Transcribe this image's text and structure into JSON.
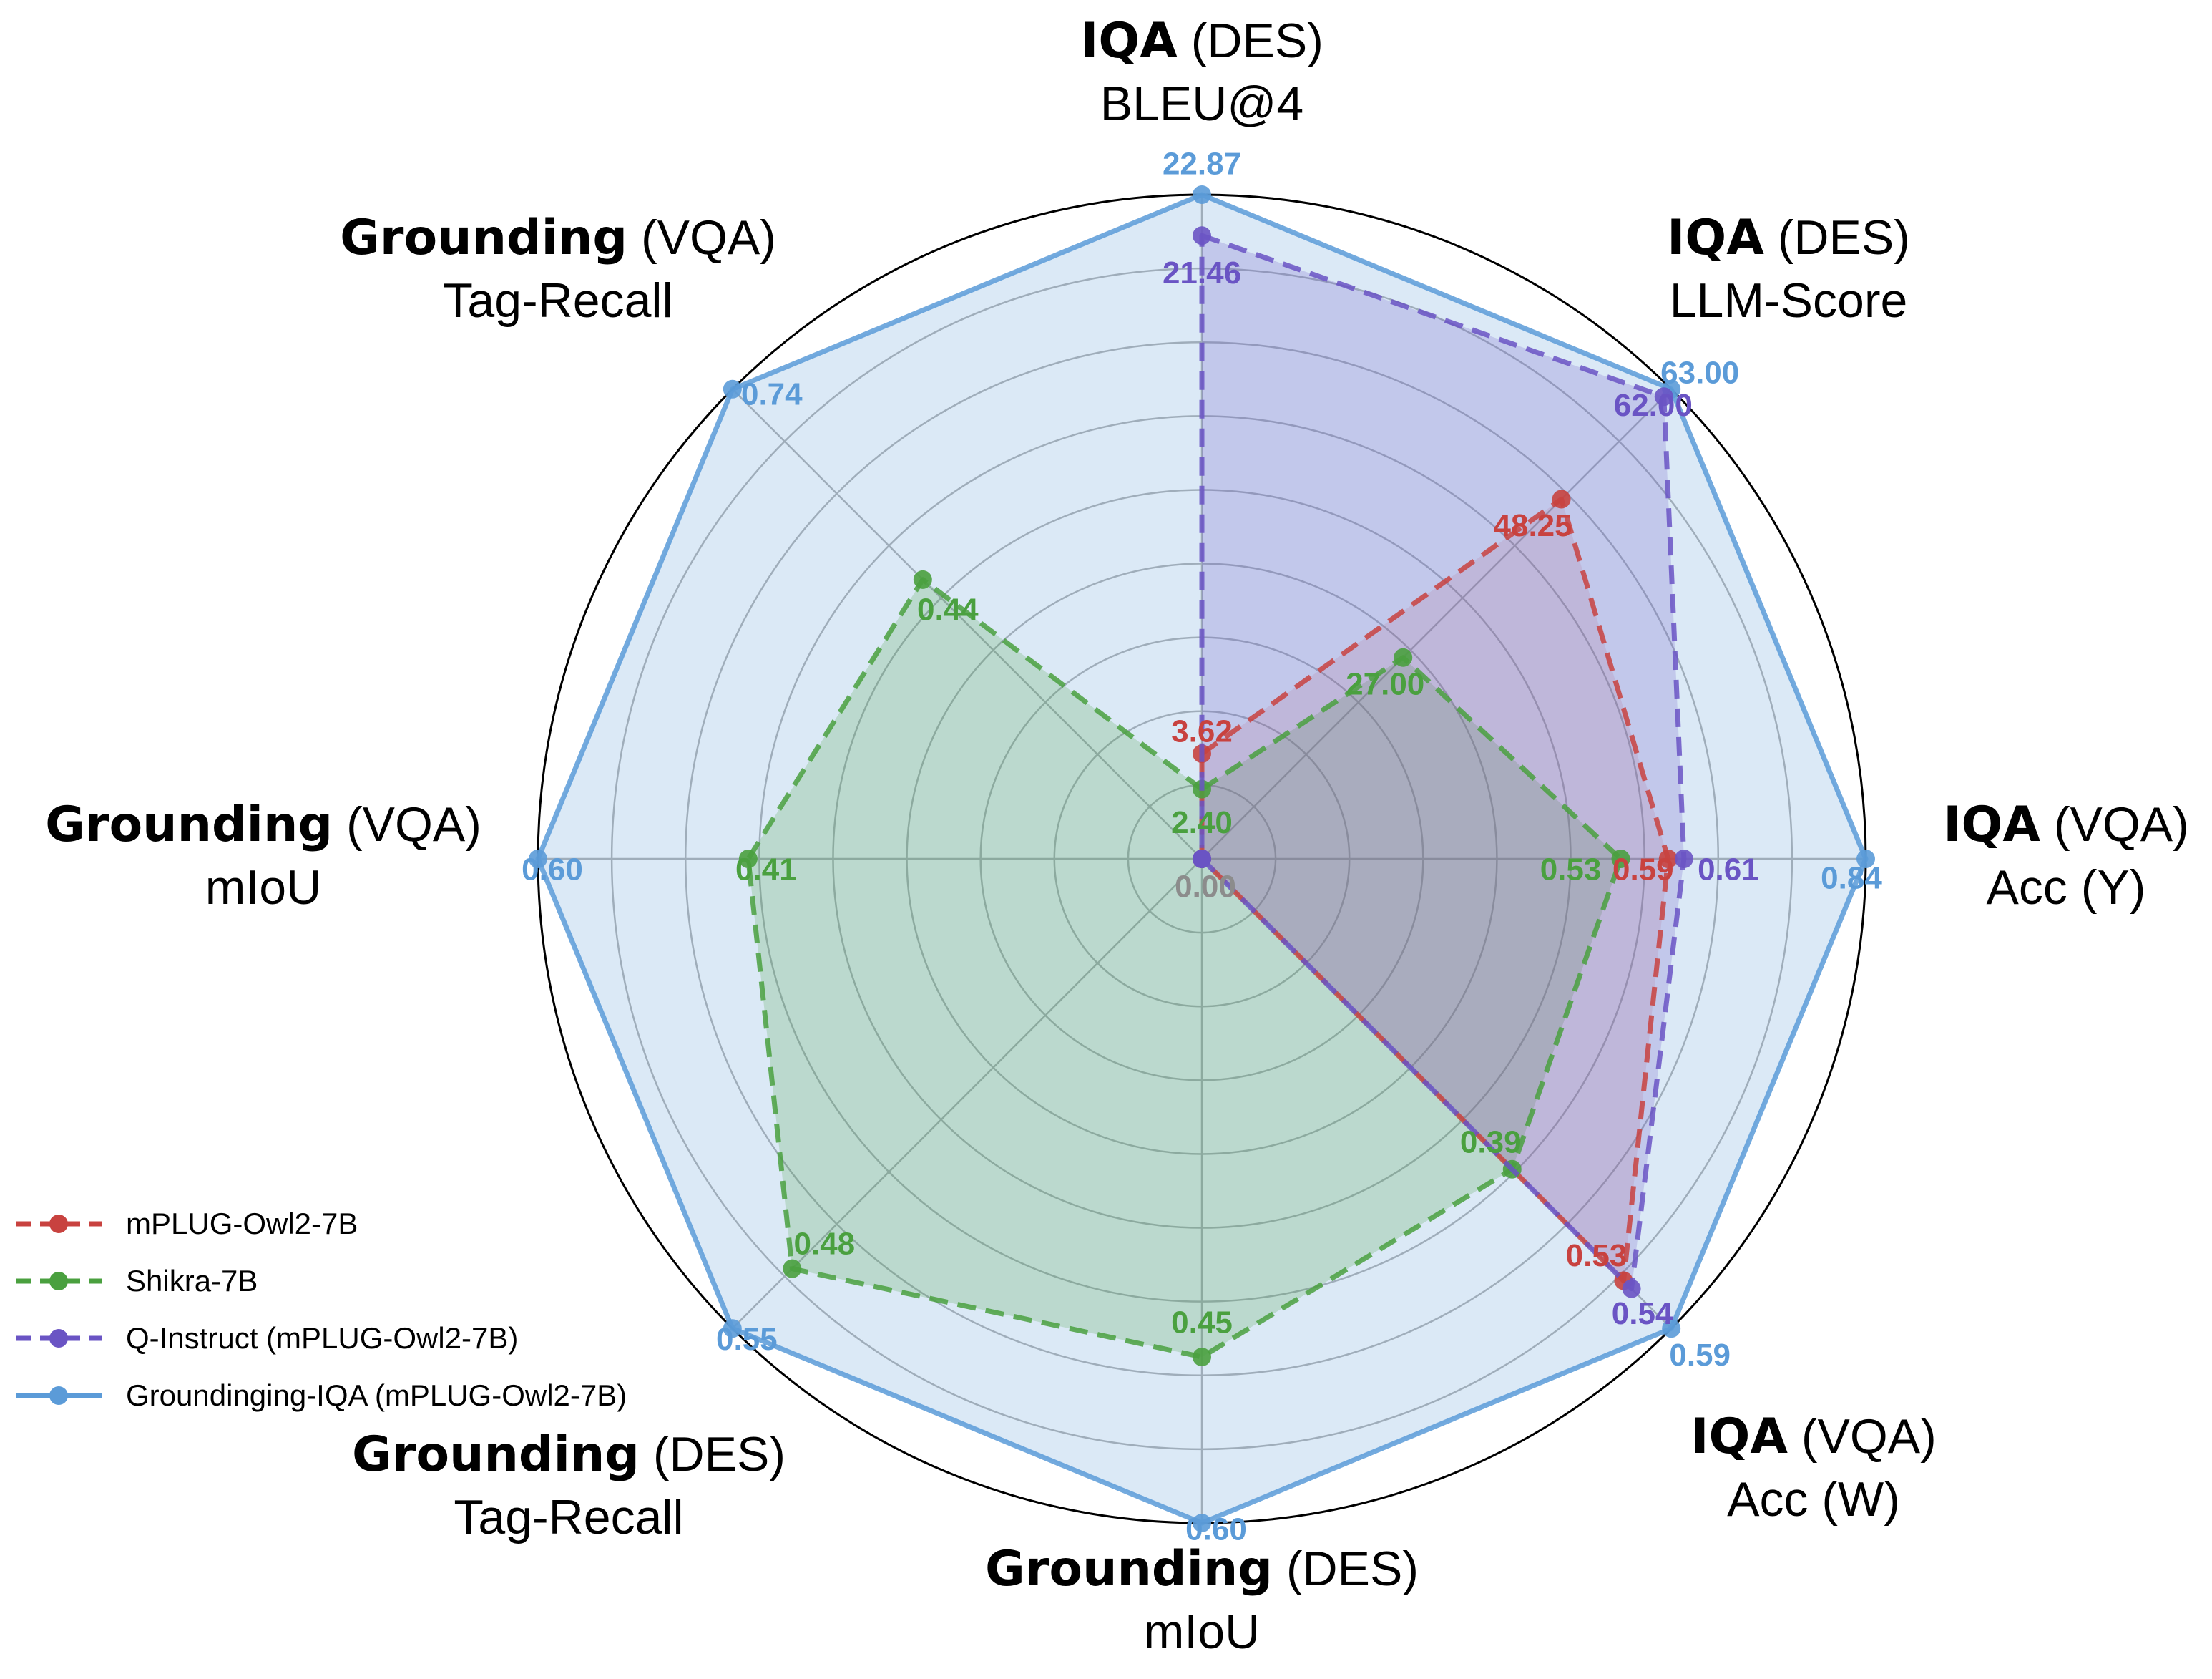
{
  "chart_data": {
    "type": "radar",
    "axes": [
      {
        "bold": "IQA",
        "tag": "(DES)",
        "metric": "BLEU@4",
        "max": 22.87,
        "max_label": "22.87"
      },
      {
        "bold": "IQA",
        "tag": "(DES)",
        "metric": "LLM-Score",
        "max": 63.0,
        "max_label": "63.00"
      },
      {
        "bold": "IQA",
        "tag": "(VQA)",
        "metric": "Acc (Y)",
        "max": 0.84,
        "max_label": "0.84"
      },
      {
        "bold": "IQA",
        "tag": "(VQA)",
        "metric": "Acc (W)",
        "max": 0.59,
        "max_label": "0.59"
      },
      {
        "bold": "Grounding",
        "tag": "(DES)",
        "metric": "mIoU",
        "max": 0.6,
        "max_label": "0.60"
      },
      {
        "bold": "Grounding",
        "tag": "(DES)",
        "metric": "Tag-Recall",
        "max": 0.55,
        "max_label": "0.55"
      },
      {
        "bold": "Grounding",
        "tag": "(VQA)",
        "metric": "mIoU",
        "max": 0.6,
        "max_label": "0.60"
      },
      {
        "bold": "Grounding",
        "tag": "(VQA)",
        "metric": "Tag-Recall",
        "max": 0.74,
        "max_label": "0.74"
      }
    ],
    "center_label": "0.00",
    "series": [
      {
        "name": "mPLUG-Owl2-7B",
        "color": "#c8423f",
        "style": "dashed",
        "values": [
          3.62,
          48.25,
          0.59,
          0.53,
          0,
          0,
          0,
          0
        ],
        "labels": [
          "3.62",
          "48.25",
          "0.59",
          "0.53",
          "",
          "",
          "",
          ""
        ]
      },
      {
        "name": "Shikra-7B",
        "color": "#4aa03f",
        "style": "dashed",
        "values": [
          2.4,
          27.0,
          0.53,
          0.39,
          0.45,
          0.48,
          0.41,
          0.44
        ],
        "labels": [
          "2.40",
          "27.00",
          "0.53",
          "0.39",
          "0.45",
          "0.48",
          "0.41",
          "0.44"
        ]
      },
      {
        "name": "Q-Instruct (mPLUG-Owl2-7B)",
        "color": "#6a54c4",
        "style": "dashed",
        "values": [
          21.46,
          62.0,
          0.61,
          0.54,
          0,
          0,
          0,
          0
        ],
        "labels": [
          "21.46",
          "62.00",
          "0.61",
          "0.54",
          "",
          "",
          "",
          ""
        ]
      },
      {
        "name": "Groundinging-IQA (mPLUG-Owl2-7B)",
        "color": "#5b9bd8",
        "style": "solid",
        "values": [
          22.87,
          63.0,
          0.84,
          0.59,
          0.6,
          0.55,
          0.6,
          0.74
        ],
        "labels": [
          "22.87",
          "63.00",
          "0.84",
          "0.59",
          "0.60",
          "0.55",
          "0.60",
          "0.74"
        ]
      }
    ],
    "grid": true,
    "legend_position": "lower-left"
  }
}
